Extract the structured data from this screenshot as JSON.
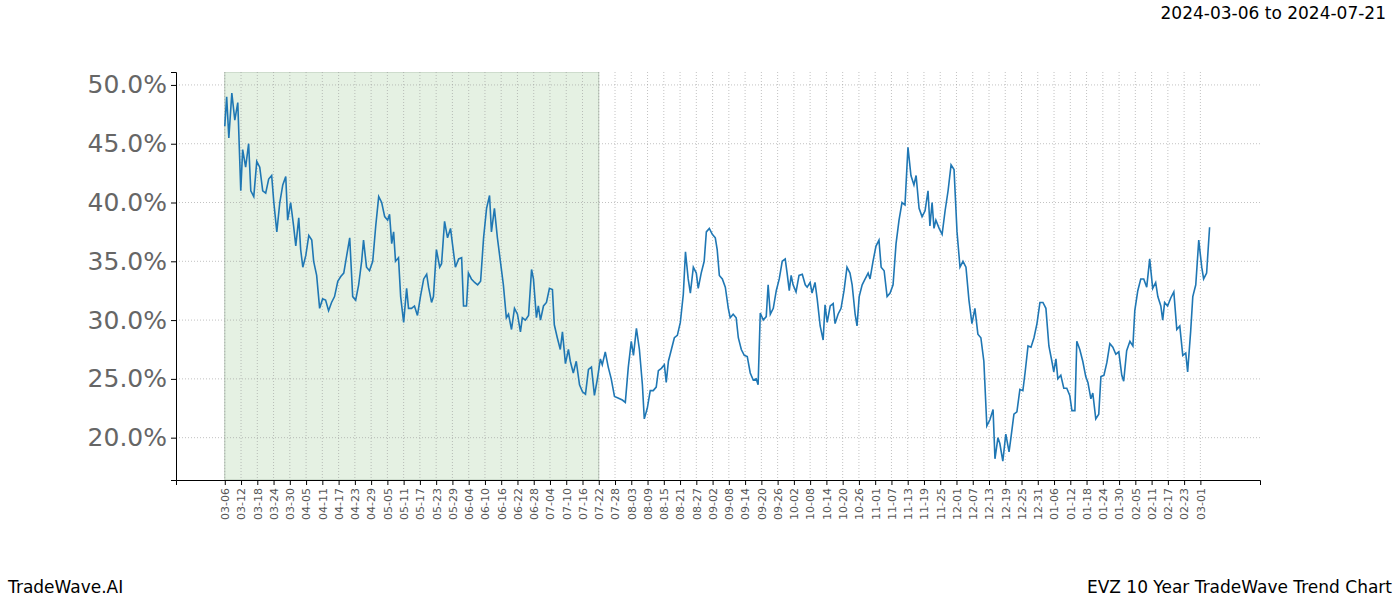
{
  "chart_data": {
    "type": "line",
    "title": "EVZ 10 Year TradeWave Trend Chart",
    "subtitle": "2024-03-06 to 2024-07-21",
    "annotations": [
      "TradeWave.AI"
    ],
    "color": "#1f77b4",
    "grid": true,
    "shaded_x": [
      0,
      138
    ],
    "xlim": [
      -18,
      382
    ],
    "ylim": [
      16.4,
      51.1
    ],
    "yticks": [
      {
        "value": 20,
        "label": "20.0%"
      },
      {
        "value": 25,
        "label": "25.0%"
      },
      {
        "value": 30,
        "label": "30.0%"
      },
      {
        "value": 35,
        "label": "35.0%"
      },
      {
        "value": 40,
        "label": "40.0%"
      },
      {
        "value": 45,
        "label": "45.0%"
      },
      {
        "value": 50,
        "label": "50.0%"
      }
    ],
    "xticks": [
      {
        "value": 0,
        "label": "03-06"
      },
      {
        "value": 6,
        "label": "03-12"
      },
      {
        "value": 12,
        "label": "03-18"
      },
      {
        "value": 18,
        "label": "03-24"
      },
      {
        "value": 24,
        "label": "03-30"
      },
      {
        "value": 30,
        "label": "04-05"
      },
      {
        "value": 36,
        "label": "04-11"
      },
      {
        "value": 42,
        "label": "04-17"
      },
      {
        "value": 48,
        "label": "04-23"
      },
      {
        "value": 54,
        "label": "04-29"
      },
      {
        "value": 60,
        "label": "05-05"
      },
      {
        "value": 66,
        "label": "05-11"
      },
      {
        "value": 72,
        "label": "05-17"
      },
      {
        "value": 78,
        "label": "05-23"
      },
      {
        "value": 84,
        "label": "05-29"
      },
      {
        "value": 90,
        "label": "06-04"
      },
      {
        "value": 96,
        "label": "06-10"
      },
      {
        "value": 102,
        "label": "06-16"
      },
      {
        "value": 108,
        "label": "06-22"
      },
      {
        "value": 114,
        "label": "06-28"
      },
      {
        "value": 120,
        "label": "07-04"
      },
      {
        "value": 126,
        "label": "07-10"
      },
      {
        "value": 132,
        "label": "07-16"
      },
      {
        "value": 138,
        "label": "07-22"
      },
      {
        "value": 144,
        "label": "07-28"
      },
      {
        "value": 150,
        "label": "08-03"
      },
      {
        "value": 156,
        "label": "08-09"
      },
      {
        "value": 162,
        "label": "08-15"
      },
      {
        "value": 168,
        "label": "08-21"
      },
      {
        "value": 174,
        "label": "08-27"
      },
      {
        "value": 180,
        "label": "09-02"
      },
      {
        "value": 186,
        "label": "09-08"
      },
      {
        "value": 192,
        "label": "09-14"
      },
      {
        "value": 198,
        "label": "09-20"
      },
      {
        "value": 204,
        "label": "09-26"
      },
      {
        "value": 210,
        "label": "10-02"
      },
      {
        "value": 216,
        "label": "10-08"
      },
      {
        "value": 222,
        "label": "10-14"
      },
      {
        "value": 228,
        "label": "10-20"
      },
      {
        "value": 234,
        "label": "10-26"
      },
      {
        "value": 240,
        "label": "11-01"
      },
      {
        "value": 246,
        "label": "11-07"
      },
      {
        "value": 252,
        "label": "11-13"
      },
      {
        "value": 258,
        "label": "11-19"
      },
      {
        "value": 264,
        "label": "11-25"
      },
      {
        "value": 270,
        "label": "12-01"
      },
      {
        "value": 276,
        "label": "12-07"
      },
      {
        "value": 282,
        "label": "12-13"
      },
      {
        "value": 288,
        "label": "12-19"
      },
      {
        "value": 294,
        "label": "12-25"
      },
      {
        "value": 300,
        "label": "12-31"
      },
      {
        "value": 306,
        "label": "01-06"
      },
      {
        "value": 312,
        "label": "01-12"
      },
      {
        "value": 318,
        "label": "01-18"
      },
      {
        "value": 324,
        "label": "01-24"
      },
      {
        "value": 330,
        "label": "01-30"
      },
      {
        "value": 336,
        "label": "02-05"
      },
      {
        "value": 342,
        "label": "02-11"
      },
      {
        "value": 348,
        "label": "02-17"
      },
      {
        "value": 354,
        "label": "02-23"
      },
      {
        "value": 360,
        "label": "03-01"
      }
    ],
    "x": [
      0.0,
      0.7,
      1.5,
      2.6,
      3.7,
      4.8,
      5.9,
      6.6,
      7.7,
      8.8,
      9.6,
      10.7,
      11.8,
      12.9,
      14.0,
      15.1,
      16.2,
      17.3,
      18.1,
      19.2,
      20.3,
      21.4,
      22.5,
      23.2,
      24.3,
      25.4,
      26.2,
      27.3,
      28.0,
      28.8,
      29.9,
      31.0,
      32.1,
      32.8,
      33.9,
      35.0,
      36.1,
      37.2,
      38.3,
      39.4,
      40.5,
      41.7,
      42.8,
      43.9,
      45.0,
      46.1,
      47.2,
      48.3,
      49.4,
      50.5,
      51.2,
      52.3,
      53.4,
      54.6,
      55.7,
      56.8,
      57.9,
      59.0,
      60.1,
      60.8,
      61.6,
      62.3,
      63.0,
      64.1,
      64.9,
      66.0,
      67.1,
      67.8,
      68.9,
      70.0,
      71.1,
      72.2,
      73.4,
      74.5,
      75.2,
      76.3,
      77.0,
      78.1,
      79.3,
      80.0,
      81.1,
      82.2,
      83.3,
      84.0,
      85.1,
      86.3,
      87.4,
      88.1,
      89.2,
      89.9,
      91.0,
      92.2,
      93.3,
      94.4,
      95.5,
      96.6,
      97.7,
      98.4,
      99.5,
      100.6,
      101.7,
      102.8,
      103.9,
      104.7,
      105.8,
      106.9,
      108.0,
      109.1,
      109.8,
      110.9,
      112.1,
      113.2,
      113.9,
      115.0,
      115.7,
      116.5,
      117.6,
      118.7,
      119.8,
      120.9,
      121.6,
      122.7,
      123.8,
      124.6,
      125.7,
      126.8,
      127.5,
      128.6,
      129.7,
      130.9,
      132.0,
      133.1,
      134.2,
      135.3,
      136.4,
      137.5,
      138.6,
      139.3,
      140.4,
      141.5,
      142.6,
      143.8,
      144.9,
      146.7,
      147.8,
      148.9,
      150.0,
      150.8,
      151.9,
      153.0,
      154.1,
      154.8,
      155.9,
      157.0,
      158.1,
      159.2,
      160.0,
      161.1,
      162.2,
      162.9,
      163.7,
      164.8,
      165.9,
      167.0,
      168.1,
      169.2,
      170.0,
      171.0,
      171.8,
      172.9,
      174.0,
      174.7,
      175.8,
      176.9,
      177.7,
      178.8,
      179.9,
      181.0,
      181.7,
      182.5,
      183.6,
      184.7,
      185.8,
      186.5,
      187.6,
      188.7,
      189.5,
      190.6,
      191.7,
      192.8,
      193.9,
      195.0,
      196.1,
      196.8,
      197.6,
      198.7,
      199.8,
      200.5,
      201.3,
      202.4,
      203.5,
      204.6,
      205.7,
      206.8,
      207.5,
      208.3,
      209.0,
      209.7,
      210.8,
      211.9,
      213.1,
      214.2,
      214.9,
      216.0,
      216.7,
      217.8,
      218.6,
      219.7,
      220.8,
      221.5,
      222.3,
      223.4,
      224.5,
      225.2,
      226.3,
      227.4,
      228.5,
      229.6,
      230.7,
      231.5,
      232.6,
      233.3,
      234.1,
      235.2,
      236.3,
      237.4,
      238.1,
      239.2,
      240.3,
      241.4,
      242.2,
      243.3,
      244.4,
      245.5,
      246.6,
      247.7,
      248.8,
      249.9,
      251.0,
      252.1,
      253.2,
      254.3,
      255.1,
      256.2,
      257.3,
      258.4,
      259.5,
      260.2,
      261.0,
      261.7,
      262.4,
      263.6,
      264.7,
      265.8,
      266.9,
      268.0,
      269.1,
      270.2,
      271.3,
      272.4,
      273.5,
      274.6,
      275.7,
      276.8,
      277.9,
      279.0,
      280.1,
      281.2,
      282.3,
      283.5,
      284.2,
      285.3,
      286.0,
      287.1,
      288.2,
      289.4,
      290.1,
      291.2,
      292.3,
      293.4,
      294.5,
      295.3,
      296.4,
      297.5,
      298.6,
      299.7,
      300.8,
      301.9,
      303.0,
      304.1,
      305.2,
      305.9,
      306.7,
      307.4,
      308.5,
      309.6,
      310.7,
      311.8,
      312.6,
      313.7,
      314.4,
      315.5,
      316.6,
      317.7,
      318.5,
      319.6,
      320.3,
      321.4,
      322.5,
      323.3,
      324.4,
      325.5,
      326.6,
      327.7,
      328.8,
      329.9,
      331.0,
      331.7,
      332.8,
      334.0,
      335.1,
      335.8,
      336.9,
      338.0,
      339.1,
      340.2,
      341.3,
      342.4,
      343.5,
      344.3,
      345.4,
      346.1,
      346.8,
      347.9,
      349.1,
      350.2,
      351.3,
      352.4,
      353.5,
      354.6,
      355.3,
      356.4,
      357.2,
      358.3,
      359.4,
      360.5,
      361.2,
      362.3,
      363.4
    ],
    "values": [
      46.5,
      49.0,
      45.5,
      49.3,
      47.0,
      48.5,
      41.0,
      44.5,
      43.0,
      45.0,
      41.0,
      40.5,
      43.5,
      43.0,
      41.0,
      40.8,
      42.0,
      42.3,
      40.0,
      37.5,
      40.0,
      41.5,
      42.2,
      38.5,
      40.0,
      38.0,
      36.3,
      38.7,
      36.0,
      34.5,
      35.5,
      37.2,
      36.8,
      35.0,
      33.8,
      31.0,
      31.8,
      31.7,
      30.8,
      31.5,
      32.0,
      33.3,
      33.7,
      34.0,
      35.5,
      37.0,
      32.0,
      31.7,
      33.0,
      35.0,
      36.8,
      34.5,
      34.2,
      35.0,
      38.0,
      40.5,
      40.0,
      38.8,
      38.5,
      39.0,
      36.5,
      37.5,
      35.0,
      35.3,
      32.0,
      29.8,
      32.7,
      31.0,
      31.0,
      31.2,
      30.4,
      32.0,
      33.5,
      33.9,
      32.8,
      31.5,
      32.0,
      36.0,
      34.5,
      34.8,
      38.4,
      37.0,
      37.8,
      36.5,
      34.5,
      35.2,
      35.3,
      31.2,
      31.2,
      34.0,
      33.5,
      33.2,
      33.0,
      33.3,
      37.0,
      39.5,
      40.6,
      37.5,
      39.5,
      37.0,
      35.0,
      33.0,
      30.2,
      30.5,
      29.2,
      31.0,
      30.5,
      29.0,
      30.2,
      30.0,
      30.4,
      34.3,
      33.5,
      30.2,
      31.2,
      30.0,
      31.2,
      31.5,
      32.7,
      32.6,
      29.6,
      28.5,
      27.5,
      29.0,
      26.3,
      27.5,
      26.5,
      25.5,
      26.5,
      24.5,
      23.9,
      23.7,
      25.8,
      26.0,
      23.6,
      25.0,
      26.7,
      26.2,
      27.3,
      26.0,
      25.0,
      23.5,
      23.4,
      23.2,
      23.0,
      26.0,
      28.2,
      27.0,
      29.3,
      27.5,
      24.5,
      21.6,
      22.5,
      24.0,
      24.0,
      24.3,
      25.7,
      25.9,
      26.2,
      24.7,
      26.5,
      27.5,
      28.5,
      28.7,
      29.8,
      32.2,
      35.8,
      33.5,
      32.3,
      34.5,
      34.0,
      32.7,
      34.0,
      35.0,
      37.5,
      37.8,
      37.3,
      37.0,
      36.0,
      33.8,
      33.5,
      32.8,
      31.0,
      30.2,
      30.5,
      30.2,
      28.5,
      27.5,
      27.0,
      26.9,
      25.5,
      24.9,
      25.0,
      24.5,
      30.6,
      30.0,
      30.3,
      33.0,
      30.5,
      31.0,
      32.5,
      33.5,
      35.0,
      35.2,
      34.0,
      32.5,
      33.8,
      33.0,
      32.4,
      33.8,
      33.9,
      33.0,
      32.8,
      33.2,
      32.3,
      33.2,
      31.8,
      29.5,
      28.3,
      31.3,
      29.8,
      31.2,
      31.4,
      29.7,
      30.5,
      31.0,
      32.5,
      34.5,
      34.0,
      33.0,
      30.5,
      29.5,
      32.0,
      33.0,
      33.5,
      34.0,
      33.5,
      35.0,
      36.3,
      36.8,
      34.5,
      34.2,
      32.0,
      32.3,
      33.0,
      36.5,
      38.5,
      40.0,
      39.8,
      44.7,
      42.3,
      41.5,
      42.3,
      39.5,
      38.8,
      39.3,
      41.0,
      38.0,
      40.0,
      37.8,
      38.5,
      37.8,
      37.3,
      39.3,
      41.0,
      43.2,
      42.8,
      37.5,
      34.5,
      35.0,
      34.5,
      31.7,
      29.7,
      31.0,
      28.8,
      28.5,
      26.5,
      21.0,
      21.5,
      22.4,
      18.2,
      20.0,
      19.5,
      18.0,
      20.3,
      18.8,
      20.0,
      22.0,
      22.2,
      24.1,
      24.0,
      25.5,
      27.8,
      27.7,
      28.5,
      29.7,
      31.5,
      31.5,
      31.0,
      27.8,
      26.5,
      25.6,
      26.7,
      25.0,
      25.3,
      24.2,
      24.2,
      23.6,
      22.3,
      22.3,
      28.2,
      27.5,
      26.5,
      25.2,
      24.7,
      23.3,
      23.8,
      21.6,
      22.0,
      25.2,
      25.3,
      26.4,
      28.0,
      27.7,
      27.1,
      27.3,
      25.3,
      24.8,
      27.4,
      28.2,
      27.8,
      30.8,
      32.5,
      33.5,
      33.5,
      32.8,
      35.2,
      32.7,
      33.2,
      32.0,
      31.2,
      30.0,
      31.5,
      31.2,
      31.9,
      32.4,
      29.2,
      29.5,
      27.0,
      27.2,
      25.6,
      29.0,
      32.0,
      33.0,
      36.8,
      34.5,
      33.5,
      34.0,
      37.9
    ]
  }
}
